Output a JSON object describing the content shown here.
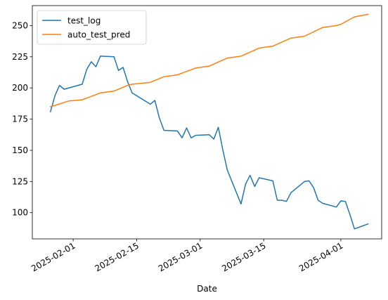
{
  "chart_data": {
    "type": "line",
    "title": "",
    "xlabel": "Date",
    "ylabel": "",
    "x_axis_type": "date",
    "xlim": [
      "2025-01-23",
      "2025-04-10"
    ],
    "ylim": [
      79,
      266
    ],
    "x_ticks": [
      "2025-02-01",
      "2025-02-15",
      "2025-03-01",
      "2025-03-15",
      "2025-04-01"
    ],
    "y_ticks": [
      100,
      125,
      150,
      175,
      200,
      225,
      250
    ],
    "grid": false,
    "legend": "top-left",
    "series": [
      {
        "name": "test_log",
        "color": "#1f77b4",
        "x": [
          "2025-01-27",
          "2025-01-28",
          "2025-01-29",
          "2025-01-30",
          "2025-02-03",
          "2025-02-04",
          "2025-02-05",
          "2025-02-06",
          "2025-02-07",
          "2025-02-10",
          "2025-02-11",
          "2025-02-12",
          "2025-02-13",
          "2025-02-14",
          "2025-02-18",
          "2025-02-19",
          "2025-02-20",
          "2025-02-21",
          "2025-02-24",
          "2025-02-25",
          "2025-02-26",
          "2025-02-27",
          "2025-02-28",
          "2025-03-03",
          "2025-03-04",
          "2025-03-05",
          "2025-03-06",
          "2025-03-07",
          "2025-03-10",
          "2025-03-11",
          "2025-03-12",
          "2025-03-13",
          "2025-03-14",
          "2025-03-17",
          "2025-03-18",
          "2025-03-19",
          "2025-03-20",
          "2025-03-21",
          "2025-03-24",
          "2025-03-25",
          "2025-03-26",
          "2025-03-27",
          "2025-03-28",
          "2025-03-31",
          "2025-04-01",
          "2025-04-02",
          "2025-04-03",
          "2025-04-04",
          "2025-04-07"
        ],
        "values": [
          181,
          194,
          202,
          199,
          203,
          215,
          221,
          217,
          225.5,
          225,
          214,
          216.5,
          205,
          196,
          187,
          190,
          176,
          166,
          165.5,
          160,
          168,
          160,
          162,
          162.5,
          159,
          168.5,
          150,
          134,
          107,
          123,
          130,
          121,
          128,
          125.5,
          110,
          110,
          109,
          116,
          125,
          125.5,
          120,
          110,
          107.5,
          104.5,
          109.5,
          109,
          98.5,
          87,
          91
        ]
      },
      {
        "name": "auto_test_pred",
        "color": "#ff7f0e",
        "x": [
          "2025-01-27",
          "2025-01-28",
          "2025-01-31",
          "2025-02-03",
          "2025-02-07",
          "2025-02-10",
          "2025-02-13",
          "2025-02-14",
          "2025-02-18",
          "2025-02-21",
          "2025-02-24",
          "2025-02-28",
          "2025-03-03",
          "2025-03-07",
          "2025-03-10",
          "2025-03-14",
          "2025-03-17",
          "2025-03-21",
          "2025-03-24",
          "2025-03-28",
          "2025-03-31",
          "2025-04-01",
          "2025-04-04",
          "2025-04-07"
        ],
        "values": [
          185,
          186,
          189.5,
          190.5,
          196,
          197.5,
          202,
          203,
          204.5,
          209,
          210.5,
          216,
          217.5,
          224,
          225.5,
          232,
          233.5,
          240,
          241.5,
          248.5,
          250,
          251,
          257,
          259
        ]
      }
    ]
  }
}
